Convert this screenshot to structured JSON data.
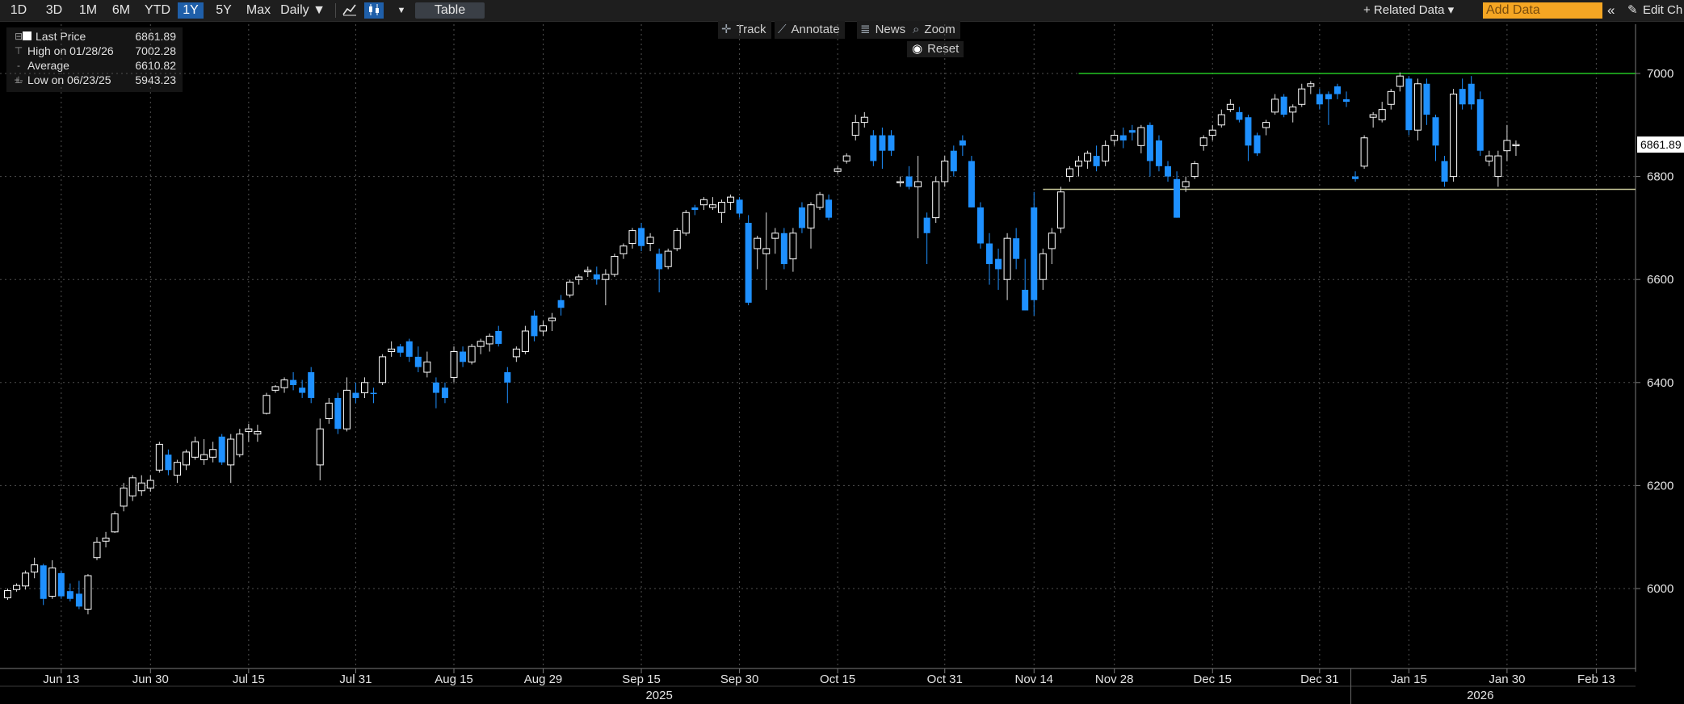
{
  "toolbar": {
    "ranges": [
      {
        "label": "1D",
        "active": false
      },
      {
        "label": "3D",
        "active": false
      },
      {
        "label": "1M",
        "active": false
      },
      {
        "label": "6M",
        "active": false
      },
      {
        "label": "YTD",
        "active": false
      },
      {
        "label": "1Y",
        "active": true
      },
      {
        "label": "5Y",
        "active": false
      },
      {
        "label": "Max",
        "active": false
      }
    ],
    "frequency": "Daily ▼",
    "table_label": "Table",
    "related_data": "+ Related Data ▾",
    "add_data_placeholder": "Add Data",
    "collapse_icon": "double-chevron-left-icon",
    "edit_label": "Edit Ch",
    "line_style_icon": "line-chart-icon",
    "candle_style_icon": "candlestick-icon",
    "style_dropdown_icon": "caret-down-icon",
    "pencil_icon": "pencil-icon"
  },
  "tools": {
    "track": "Track",
    "annotate": "Annotate",
    "news": "News",
    "zoom": "Zoom",
    "reset": "Reset"
  },
  "legend": {
    "last_label": "Last Price",
    "last_value": "6861.89",
    "high_label": "High on 01/28/26",
    "high_value": "7002.28",
    "avg_label": "Average",
    "avg_value": "6610.82",
    "low_label": "Low on 06/23/25",
    "low_value": "5943.23"
  },
  "colors": {
    "up_candle": "#ffffff",
    "down_candle": "#1e90ff",
    "high_line": "#22c522",
    "support_line": "#c8c89a"
  },
  "chart_data": {
    "type": "candlestick",
    "title": "",
    "xlabel": "",
    "ylabel": "",
    "ylim": [
      5850,
      7080
    ],
    "yticks": [
      6000,
      6200,
      6400,
      6600,
      6800,
      7000
    ],
    "xticks": [
      {
        "label": "Jun 13",
        "bar": 6
      },
      {
        "label": "Jun 30",
        "bar": 16
      },
      {
        "label": "Jul 15",
        "bar": 27
      },
      {
        "label": "Jul 31",
        "bar": 39
      },
      {
        "label": "Aug 15",
        "bar": 50
      },
      {
        "label": "Aug 29",
        "bar": 60
      },
      {
        "label": "Sep 15",
        "bar": 71
      },
      {
        "label": "Sep 30",
        "bar": 82
      },
      {
        "label": "Oct 15",
        "bar": 93
      },
      {
        "label": "Oct 31",
        "bar": 105
      },
      {
        "label": "Nov 14",
        "bar": 115
      },
      {
        "label": "Nov 28",
        "bar": 124
      },
      {
        "label": "Dec 15",
        "bar": 135
      },
      {
        "label": "Dec 31",
        "bar": 147
      },
      {
        "label": "Jan 15",
        "bar": 157
      },
      {
        "label": "Jan 30",
        "bar": 168
      },
      {
        "label": "Feb 13",
        "bar": 178
      }
    ],
    "year_labels": [
      {
        "label": "2025",
        "bar": 73
      },
      {
        "label": "2026",
        "bar": 165
      }
    ],
    "last_price_tag": "6861.89",
    "reference_lines": [
      {
        "kind": "high",
        "value": 7000,
        "from_bar": 120
      },
      {
        "kind": "support",
        "value": 6775,
        "from_bar": 116
      }
    ],
    "candles": [
      [
        5982,
        6000,
        5978,
        5996
      ],
      [
        5998,
        6010,
        5994,
        6006
      ],
      [
        6005,
        6035,
        5998,
        6030
      ],
      [
        6032,
        6060,
        6020,
        6046
      ],
      [
        6045,
        6048,
        5968,
        5980
      ],
      [
        5985,
        6055,
        5980,
        6040
      ],
      [
        6030,
        6035,
        5980,
        5985
      ],
      [
        5995,
        6010,
        5975,
        5980
      ],
      [
        5990,
        6015,
        5960,
        5965
      ],
      [
        5960,
        6028,
        5950,
        6025
      ],
      [
        6060,
        6100,
        6055,
        6090
      ],
      [
        6092,
        6110,
        6080,
        6098
      ],
      [
        6110,
        6150,
        6108,
        6145
      ],
      [
        6160,
        6205,
        6150,
        6195
      ],
      [
        6180,
        6220,
        6170,
        6215
      ],
      [
        6190,
        6220,
        6180,
        6205
      ],
      [
        6195,
        6220,
        6188,
        6210
      ],
      [
        6230,
        6285,
        6225,
        6280
      ],
      [
        6260,
        6270,
        6220,
        6230
      ],
      [
        6220,
        6250,
        6205,
        6245
      ],
      [
        6240,
        6270,
        6230,
        6265
      ],
      [
        6255,
        6295,
        6250,
        6285
      ],
      [
        6250,
        6290,
        6240,
        6260
      ],
      [
        6255,
        6285,
        6245,
        6270
      ],
      [
        6295,
        6300,
        6240,
        6245
      ],
      [
        6240,
        6300,
        6205,
        6290
      ],
      [
        6260,
        6310,
        6255,
        6300
      ],
      [
        6305,
        6320,
        6285,
        6310
      ],
      [
        6300,
        6318,
        6285,
        6305
      ],
      [
        6340,
        6380,
        6338,
        6375
      ],
      [
        6385,
        6395,
        6380,
        6392
      ],
      [
        6390,
        6410,
        6380,
        6405
      ],
      [
        6405,
        6420,
        6385,
        6395
      ],
      [
        6390,
        6405,
        6370,
        6380
      ],
      [
        6420,
        6430,
        6360,
        6370
      ],
      [
        6240,
        6330,
        6210,
        6310
      ],
      [
        6330,
        6370,
        6320,
        6360
      ],
      [
        6370,
        6380,
        6300,
        6310
      ],
      [
        6310,
        6410,
        6305,
        6385
      ],
      [
        6380,
        6400,
        6360,
        6370
      ],
      [
        6380,
        6410,
        6370,
        6400
      ],
      [
        6380,
        6390,
        6360,
        6378
      ],
      [
        6400,
        6455,
        6395,
        6450
      ],
      [
        6460,
        6480,
        6450,
        6465
      ],
      [
        6470,
        6475,
        6450,
        6458
      ],
      [
        6480,
        6485,
        6440,
        6450
      ],
      [
        6450,
        6470,
        6420,
        6430
      ],
      [
        6420,
        6460,
        6410,
        6440
      ],
      [
        6400,
        6410,
        6350,
        6380
      ],
      [
        6390,
        6400,
        6360,
        6370
      ],
      [
        6410,
        6470,
        6400,
        6460
      ],
      [
        6460,
        6470,
        6430,
        6440
      ],
      [
        6440,
        6475,
        6435,
        6470
      ],
      [
        6470,
        6485,
        6455,
        6480
      ],
      [
        6475,
        6495,
        6460,
        6490
      ],
      [
        6500,
        6510,
        6470,
        6475
      ],
      [
        6420,
        6430,
        6360,
        6400
      ],
      [
        6450,
        6470,
        6440,
        6465
      ],
      [
        6460,
        6510,
        6455,
        6500
      ],
      [
        6530,
        6540,
        6480,
        6490
      ],
      [
        6500,
        6520,
        6490,
        6510
      ],
      [
        6520,
        6535,
        6500,
        6525
      ],
      [
        6560,
        6570,
        6530,
        6545
      ],
      [
        6570,
        6600,
        6565,
        6595
      ],
      [
        6600,
        6610,
        6590,
        6605
      ],
      [
        6615,
        6625,
        6605,
        6618
      ],
      [
        6610,
        6625,
        6590,
        6600
      ],
      [
        6600,
        6620,
        6550,
        6610
      ],
      [
        6610,
        6650,
        6605,
        6645
      ],
      [
        6650,
        6670,
        6640,
        6665
      ],
      [
        6670,
        6700,
        6660,
        6695
      ],
      [
        6700,
        6710,
        6655,
        6665
      ],
      [
        6670,
        6690,
        6655,
        6682
      ],
      [
        6650,
        6660,
        6575,
        6620
      ],
      [
        6625,
        6660,
        6620,
        6655
      ],
      [
        6660,
        6700,
        6655,
        6695
      ],
      [
        6690,
        6735,
        6685,
        6730
      ],
      [
        6740,
        6745,
        6725,
        6735
      ],
      [
        6745,
        6760,
        6735,
        6755
      ],
      [
        6740,
        6760,
        6735,
        6745
      ],
      [
        6730,
        6755,
        6710,
        6750
      ],
      [
        6750,
        6765,
        6735,
        6760
      ],
      [
        6755,
        6760,
        6720,
        6728
      ],
      [
        6710,
        6725,
        6550,
        6555
      ],
      [
        6660,
        6685,
        6620,
        6680
      ],
      [
        6650,
        6730,
        6580,
        6660
      ],
      [
        6680,
        6700,
        6650,
        6690
      ],
      [
        6690,
        6700,
        6620,
        6630
      ],
      [
        6640,
        6700,
        6615,
        6690
      ],
      [
        6740,
        6750,
        6690,
        6700
      ],
      [
        6700,
        6750,
        6660,
        6745
      ],
      [
        6740,
        6770,
        6735,
        6765
      ],
      [
        6755,
        6765,
        6715,
        6720
      ],
      [
        6810,
        6820,
        6805,
        6815
      ],
      [
        6830,
        6845,
        6825,
        6840
      ],
      [
        6880,
        6920,
        6870,
        6905
      ],
      [
        6905,
        6925,
        6895,
        6915
      ],
      [
        6880,
        6890,
        6820,
        6830
      ],
      [
        6880,
        6895,
        6815,
        6850
      ],
      [
        6880,
        6890,
        6840,
        6850
      ],
      [
        6790,
        6800,
        6780,
        6790
      ],
      [
        6800,
        6820,
        6775,
        6780
      ],
      [
        6780,
        6840,
        6680,
        6790
      ],
      [
        6720,
        6730,
        6630,
        6690
      ],
      [
        6720,
        6800,
        6710,
        6790
      ],
      [
        6790,
        6840,
        6780,
        6830
      ],
      [
        6850,
        6860,
        6800,
        6810
      ],
      [
        6870,
        6880,
        6840,
        6860
      ],
      [
        6830,
        6840,
        6740,
        6740
      ],
      [
        6740,
        6750,
        6660,
        6670
      ],
      [
        6670,
        6690,
        6590,
        6630
      ],
      [
        6640,
        6660,
        6580,
        6620
      ],
      [
        6600,
        6690,
        6560,
        6680
      ],
      [
        6680,
        6700,
        6620,
        6640
      ],
      [
        6580,
        6640,
        6540,
        6540
      ],
      [
        6740,
        6770,
        6530,
        6560
      ],
      [
        6600,
        6660,
        6580,
        6650
      ],
      [
        6660,
        6700,
        6630,
        6690
      ],
      [
        6700,
        6780,
        6690,
        6770
      ],
      [
        6800,
        6820,
        6790,
        6815
      ],
      [
        6820,
        6840,
        6800,
        6830
      ],
      [
        6830,
        6850,
        6815,
        6845
      ],
      [
        6840,
        6860,
        6810,
        6820
      ],
      [
        6830,
        6870,
        6820,
        6860
      ],
      [
        6870,
        6890,
        6860,
        6880
      ],
      [
        6880,
        6895,
        6855,
        6870
      ],
      [
        6890,
        6900,
        6870,
        6885
      ],
      [
        6860,
        6900,
        6845,
        6895
      ],
      [
        6900,
        6905,
        6800,
        6830
      ],
      [
        6870,
        6880,
        6810,
        6820
      ],
      [
        6820,
        6830,
        6790,
        6800
      ],
      [
        6795,
        6810,
        6720,
        6720
      ],
      [
        6780,
        6800,
        6770,
        6790
      ],
      [
        6800,
        6830,
        6795,
        6825
      ],
      [
        6860,
        6880,
        6850,
        6875
      ],
      [
        6880,
        6900,
        6870,
        6890
      ],
      [
        6900,
        6930,
        6895,
        6920
      ],
      [
        6930,
        6950,
        6925,
        6940
      ],
      [
        6925,
        6935,
        6905,
        6910
      ],
      [
        6915,
        6920,
        6830,
        6860
      ],
      [
        6880,
        6885,
        6840,
        6845
      ],
      [
        6895,
        6910,
        6880,
        6905
      ],
      [
        6925,
        6960,
        6920,
        6950
      ],
      [
        6955,
        6960,
        6915,
        6920
      ],
      [
        6925,
        6940,
        6905,
        6935
      ],
      [
        6940,
        6980,
        6935,
        6970
      ],
      [
        6975,
        6985,
        6960,
        6980
      ],
      [
        6960,
        6970,
        6930,
        6940
      ],
      [
        6960,
        6965,
        6900,
        6950
      ],
      [
        6975,
        6980,
        6950,
        6960
      ],
      [
        6950,
        6965,
        6935,
        6945
      ],
      [
        6800,
        6810,
        6790,
        6795
      ],
      [
        6820,
        6880,
        6815,
        6875
      ],
      [
        6915,
        6925,
        6895,
        6920
      ],
      [
        6910,
        6945,
        6905,
        6930
      ],
      [
        6940,
        6970,
        6930,
        6965
      ],
      [
        6975,
        7002,
        6965,
        6995
      ],
      [
        6990,
        6995,
        6880,
        6890
      ],
      [
        6890,
        6990,
        6870,
        6980
      ],
      [
        6980,
        6990,
        6900,
        6920
      ],
      [
        6915,
        6920,
        6830,
        6860
      ],
      [
        6830,
        6840,
        6780,
        6790
      ],
      [
        6800,
        6970,
        6790,
        6960
      ],
      [
        6970,
        6990,
        6930,
        6940
      ],
      [
        6980,
        6995,
        6930,
        6940
      ],
      [
        6950,
        6965,
        6840,
        6850
      ],
      [
        6830,
        6850,
        6820,
        6840
      ],
      [
        6800,
        6850,
        6780,
        6840
      ],
      [
        6850,
        6900,
        6830,
        6870
      ],
      [
        6862,
        6870,
        6840,
        6862
      ]
    ]
  }
}
